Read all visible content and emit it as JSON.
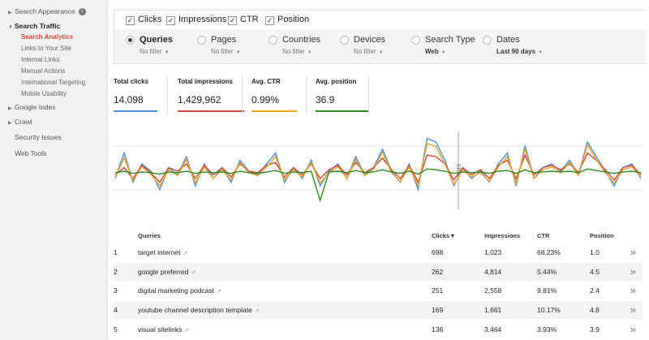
{
  "sidebar": {
    "search_appearance": "Search Appearance",
    "search_traffic": "Search Traffic",
    "sub": [
      "Search Analytics",
      "Links to Your Site",
      "Internal Links",
      "Manual Actions",
      "International Targeting",
      "Mobile Usability"
    ],
    "google_index": "Google Index",
    "crawl": "Crawl",
    "security_issues": "Security Issues",
    "web_tools": "Web Tools"
  },
  "metrics": {
    "clicks": "Clicks",
    "impressions": "Impressions",
    "ctr": "CTR",
    "position": "Position"
  },
  "filters": {
    "queries": {
      "label": "Queries",
      "value": "No filter"
    },
    "pages": {
      "label": "Pages",
      "value": "No filter"
    },
    "countries": {
      "label": "Countries",
      "value": "No filter"
    },
    "devices": {
      "label": "Devices",
      "value": "No filter"
    },
    "search_type": {
      "label": "Search Type",
      "value": "Web"
    },
    "dates": {
      "label": "Dates",
      "value": "Last 90 days"
    }
  },
  "totals": {
    "clicks": {
      "label": "Total clicks",
      "value": "14,098",
      "color": "#4a90d9"
    },
    "impressions": {
      "label": "Total impressions",
      "value": "1,429,962",
      "color": "#d0463a"
    },
    "ctr": {
      "label": "Avg. CTR",
      "value": "0.99%",
      "color": "#f0a31e"
    },
    "position": {
      "label": "Avg. position",
      "value": "36.9",
      "color": "#2e8b1f"
    }
  },
  "chart_data": {
    "type": "line",
    "annotation": "NOTE",
    "series": [
      {
        "color": "#4a90d9",
        "values": [
          40,
          75,
          35,
          60,
          50,
          25,
          55,
          45,
          70,
          30,
          60,
          40,
          55,
          35,
          65,
          50,
          45,
          60,
          75,
          35,
          55,
          40,
          65,
          30,
          50,
          60,
          40,
          70,
          45,
          55,
          80,
          50,
          35,
          60,
          25,
          95,
          90,
          65,
          30,
          55,
          40,
          50,
          35,
          60,
          75,
          30,
          85,
          40,
          55,
          60,
          50,
          65,
          45,
          90,
          70,
          50,
          30,
          55,
          60,
          40
        ]
      },
      {
        "color": "#d0463a",
        "values": [
          45,
          55,
          40,
          58,
          48,
          35,
          55,
          50,
          60,
          40,
          58,
          45,
          55,
          42,
          60,
          50,
          48,
          58,
          62,
          42,
          55,
          45,
          60,
          40,
          52,
          58,
          45,
          62,
          48,
          55,
          68,
          52,
          40,
          58,
          35,
          72,
          70,
          60,
          38,
          55,
          45,
          52,
          40,
          58,
          65,
          40,
          72,
          45,
          55,
          58,
          52,
          60,
          48,
          75,
          65,
          52,
          38,
          55,
          58,
          45
        ]
      },
      {
        "color": "#f0a31e",
        "values": [
          42,
          68,
          38,
          56,
          46,
          30,
          52,
          44,
          66,
          34,
          56,
          40,
          52,
          38,
          62,
          48,
          44,
          56,
          70,
          38,
          52,
          42,
          62,
          34,
          48,
          56,
          40,
          66,
          44,
          52,
          76,
          48,
          36,
          56,
          30,
          88,
          84,
          60,
          32,
          52,
          42,
          48,
          36,
          56,
          70,
          34,
          80,
          40,
          52,
          56,
          48,
          62,
          44,
          86,
          66,
          48,
          34,
          52,
          56,
          42
        ]
      },
      {
        "color": "#2e8b1f",
        "values": [
          48,
          50,
          47,
          49,
          48,
          46,
          49,
          48,
          50,
          47,
          49,
          48,
          49,
          47,
          50,
          48,
          47,
          49,
          51,
          47,
          49,
          48,
          50,
          10,
          49,
          50,
          48,
          51,
          48,
          49,
          52,
          49,
          47,
          50,
          46,
          53,
          52,
          50,
          47,
          49,
          48,
          49,
          47,
          50,
          51,
          47,
          52,
          48,
          49,
          50,
          49,
          50,
          48,
          53,
          51,
          49,
          47,
          49,
          50,
          48
        ]
      }
    ]
  },
  "table": {
    "headers": {
      "queries": "Queries",
      "clicks": "Clicks▼",
      "impressions": "Impressions",
      "ctr": "CTR",
      "position": "Position"
    },
    "rows": [
      {
        "n": "1",
        "query": "target internet",
        "clicks": "698",
        "impressions": "1,023",
        "ctr": "68.23%",
        "position": "1.0"
      },
      {
        "n": "2",
        "query": "google preferred",
        "clicks": "262",
        "impressions": "4,814",
        "ctr": "5.44%",
        "position": "4.5"
      },
      {
        "n": "3",
        "query": "digital marketing podcast",
        "clicks": "251",
        "impressions": "2,558",
        "ctr": "9.81%",
        "position": "2.4"
      },
      {
        "n": "4",
        "query": "youtube channel description template",
        "clicks": "169",
        "impressions": "1,661",
        "ctr": "10.17%",
        "position": "4.8"
      },
      {
        "n": "5",
        "query": "visual sitelinks",
        "clicks": "136",
        "impressions": "3,464",
        "ctr": "3.93%",
        "position": "3.9"
      }
    ]
  }
}
